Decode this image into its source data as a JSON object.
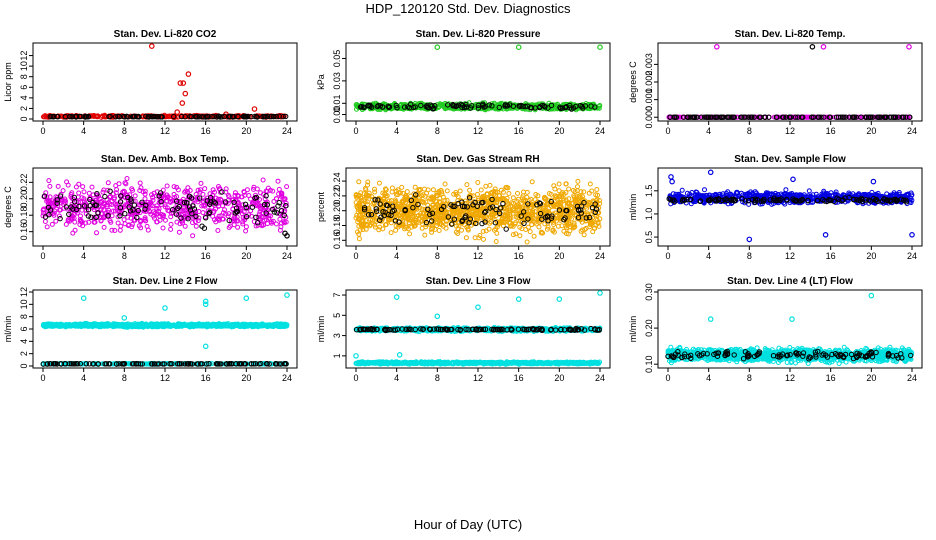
{
  "title": "HDP_120120  Std. Dev. Diagnostics",
  "xlabel": "Hour of Day (UTC)",
  "colors": {
    "black": "#000000",
    "red": "#e00000",
    "green": "#22cc22",
    "magenta": "#e000e0",
    "orange": "#f0a800",
    "blue": "#0000e0",
    "cyan": "#00e0e0"
  },
  "chart_data": [
    {
      "type": "scatter",
      "title": "Stan. Dev. Li-820 CO2",
      "ylabel": "Licor ppm",
      "xlim": [
        0,
        24
      ],
      "ylim": [
        0,
        14
      ],
      "yticks": [
        0,
        2,
        4,
        6,
        8,
        10,
        12
      ],
      "yticklabels": [
        "0",
        "2",
        "4",
        "6",
        "8",
        "10",
        "12"
      ],
      "xticks": [
        0,
        4,
        8,
        12,
        16,
        20,
        24
      ],
      "xticklabels": [
        "0",
        "4",
        "8",
        "12",
        "16",
        "20",
        "24"
      ],
      "series": [
        {
          "name": "main",
          "color": "red",
          "base": 0.5,
          "spread": 0.25,
          "density": 300,
          "outliers": [
            [
              10.7,
              13.8
            ],
            [
              13.5,
              6.8
            ],
            [
              13.8,
              6.8
            ],
            [
              14.0,
              4.8
            ],
            [
              14.3,
              8.5
            ],
            [
              13.7,
              3.0
            ],
            [
              13.2,
              1.3
            ],
            [
              20.8,
              1.9
            ],
            [
              18.0,
              0.9
            ],
            [
              0.7,
              0.6
            ]
          ]
        },
        {
          "name": "hourly",
          "color": "black",
          "base": 0.45,
          "spread": 0.1,
          "density": 120,
          "outliers": []
        }
      ]
    },
    {
      "type": "scatter",
      "title": "Stan. Dev. Li-820 Pressure",
      "ylabel": "kPa",
      "xlim": [
        0,
        24
      ],
      "ylim": [
        -0.004,
        0.062
      ],
      "yticks": [
        0,
        0.01,
        0.03,
        0.05
      ],
      "yticklabels": [
        "0.00",
        "0.01",
        "0.03",
        "0.05"
      ],
      "xticks": [
        0,
        4,
        8,
        12,
        16,
        20,
        24
      ],
      "xticklabels": [
        "0",
        "4",
        "8",
        "12",
        "16",
        "20",
        "24"
      ],
      "series": [
        {
          "name": "main",
          "color": "green",
          "base": 0.007,
          "spread": 0.004,
          "density": 700,
          "outliers": [
            [
              8,
              0.06
            ],
            [
              16,
              0.06
            ],
            [
              24,
              0.06
            ]
          ]
        },
        {
          "name": "hourly",
          "color": "black",
          "base": 0.007,
          "spread": 0.003,
          "density": 100,
          "outliers": []
        }
      ]
    },
    {
      "type": "scatter",
      "title": "Stan. Dev. Li-820 Temp.",
      "ylabel": "degrees C",
      "xlim": [
        0,
        24
      ],
      "ylim": [
        -0.0001,
        0.0041
      ],
      "yticks": [
        0,
        0.001,
        0.002,
        0.003
      ],
      "yticklabels": [
        "0.000",
        "0.001",
        "0.002",
        "0.003"
      ],
      "xticks": [
        0,
        4,
        8,
        12,
        16,
        20,
        24
      ],
      "xticklabels": [
        "0",
        "4",
        "8",
        "12",
        "16",
        "20",
        "24"
      ],
      "series": [
        {
          "name": "main",
          "color": "magenta",
          "base": 0.0,
          "spread": 0.0,
          "density": 200,
          "outliers": [
            [
              4.8,
              0.004
            ],
            [
              15.3,
              0.004
            ],
            [
              23.7,
              0.004
            ]
          ]
        },
        {
          "name": "hourly",
          "color": "black",
          "base": 0.0,
          "spread": 0.0,
          "density": 120,
          "outliers": [
            [
              14.2,
              0.004
            ]
          ]
        }
      ]
    },
    {
      "type": "scatter",
      "title": "Stan. Dev. Amb. Box Temp.",
      "ylabel": "degrees C",
      "xlim": [
        0,
        24
      ],
      "ylim": [
        0.145,
        0.235
      ],
      "yticks": [
        0.16,
        0.18,
        0.2,
        0.22
      ],
      "yticklabels": [
        "0.16",
        "0.18",
        "0.20",
        "0.22"
      ],
      "xticks": [
        0,
        4,
        8,
        12,
        16,
        20,
        24
      ],
      "xticklabels": [
        "0",
        "4",
        "8",
        "12",
        "16",
        "20",
        "24"
      ],
      "series": [
        {
          "name": "main",
          "color": "magenta",
          "base": 0.19,
          "spread": 0.04,
          "density": 700,
          "outliers": []
        },
        {
          "name": "hourly",
          "color": "black",
          "base": 0.19,
          "spread": 0.03,
          "density": 110,
          "outliers": [
            [
              23.8,
              0.158
            ],
            [
              24,
              0.155
            ]
          ]
        }
      ]
    },
    {
      "type": "scatter",
      "title": "Stan. Dev. Gas Stream RH",
      "ylabel": "percent",
      "xlim": [
        0,
        24
      ],
      "ylim": [
        0.155,
        0.255
      ],
      "yticks": [
        0.16,
        0.18,
        0.2,
        0.22,
        0.24
      ],
      "yticklabels": [
        "0.16",
        "0.18",
        "0.20",
        "0.22",
        "0.24"
      ],
      "xticks": [
        0,
        4,
        8,
        12,
        16,
        20,
        24
      ],
      "xticklabels": [
        "0",
        "4",
        "8",
        "12",
        "16",
        "20",
        "24"
      ],
      "series": [
        {
          "name": "main",
          "color": "orange",
          "base": 0.2,
          "spread": 0.045,
          "density": 1200,
          "outliers": []
        },
        {
          "name": "hourly",
          "color": "black",
          "base": 0.2,
          "spread": 0.03,
          "density": 110,
          "outliers": []
        }
      ]
    },
    {
      "type": "scatter",
      "title": "Stan. Dev. Sample Flow",
      "ylabel": "ml/min",
      "xlim": [
        0,
        24
      ],
      "ylim": [
        0.35,
        1.95
      ],
      "yticks": [
        0.5,
        1.0,
        1.5
      ],
      "yticklabels": [
        "0.5",
        "1.0",
        "1.5"
      ],
      "xticks": [
        0,
        4,
        8,
        12,
        16,
        20,
        24
      ],
      "xticklabels": [
        "0",
        "4",
        "8",
        "12",
        "16",
        "20",
        "24"
      ],
      "series": [
        {
          "name": "main",
          "color": "blue",
          "base": 1.35,
          "spread": 0.18,
          "density": 700,
          "outliers": [
            [
              0.3,
              1.8
            ],
            [
              0.4,
              1.7
            ],
            [
              4.2,
              1.9
            ],
            [
              8,
              0.45
            ],
            [
              15.5,
              0.55
            ],
            [
              24,
              0.55
            ],
            [
              12.3,
              1.75
            ],
            [
              20.2,
              1.7
            ]
          ]
        },
        {
          "name": "hourly",
          "color": "black",
          "base": 1.3,
          "spread": 0.06,
          "density": 120,
          "outliers": []
        }
      ]
    },
    {
      "type": "scatter",
      "title": "Stan. Dev. Line 2 Flow",
      "ylabel": "ml/min",
      "xlim": [
        0,
        24
      ],
      "ylim": [
        0,
        12
      ],
      "yticks": [
        0,
        2,
        4,
        6,
        8,
        10,
        12
      ],
      "yticklabels": [
        "0",
        "2",
        "4",
        "6",
        "8",
        "10",
        "12"
      ],
      "xticks": [
        0,
        4,
        8,
        12,
        16,
        20,
        24
      ],
      "xticklabels": [
        "0",
        "4",
        "8",
        "12",
        "16",
        "20",
        "24"
      ],
      "series": [
        {
          "name": "main",
          "color": "cyan",
          "base": 6.6,
          "spread": 0.35,
          "density": 900,
          "outliers": [
            [
              4,
              11
            ],
            [
              8,
              7.8
            ],
            [
              12,
              9.4
            ],
            [
              16,
              10.5
            ],
            [
              16,
              10
            ],
            [
              16,
              3.2
            ],
            [
              20,
              11
            ],
            [
              24,
              11.5
            ]
          ]
        },
        {
          "name": "low",
          "color": "cyan",
          "base": 0.35,
          "spread": 0.1,
          "density": 300,
          "outliers": []
        },
        {
          "name": "hourly",
          "color": "black",
          "base": 0.35,
          "spread": 0.05,
          "density": 120,
          "outliers": []
        }
      ]
    },
    {
      "type": "scatter",
      "title": "Stan. Dev. Line 3 Flow",
      "ylabel": "ml/min",
      "xlim": [
        0,
        24
      ],
      "ylim": [
        0,
        7.3
      ],
      "yticks": [
        1,
        3,
        5,
        7
      ],
      "yticklabels": [
        "1",
        "3",
        "5",
        "7"
      ],
      "xticks": [
        0,
        4,
        8,
        12,
        16,
        20,
        24
      ],
      "xticklabels": [
        "0",
        "4",
        "8",
        "12",
        "16",
        "20",
        "24"
      ],
      "series": [
        {
          "name": "main",
          "color": "cyan",
          "base": 3.6,
          "spread": 0.25,
          "density": 700,
          "outliers": [
            [
              0,
              1
            ],
            [
              4,
              6.8
            ],
            [
              4.3,
              1.1
            ],
            [
              8,
              4.9
            ],
            [
              12,
              5.8
            ],
            [
              16,
              6.6
            ],
            [
              20,
              6.6
            ],
            [
              24,
              7.2
            ]
          ]
        },
        {
          "name": "low",
          "color": "cyan",
          "base": 0.3,
          "spread": 0.15,
          "density": 700,
          "outliers": []
        },
        {
          "name": "hourly",
          "color": "black",
          "base": 3.6,
          "spread": 0.12,
          "density": 120,
          "outliers": []
        }
      ]
    },
    {
      "type": "scatter",
      "title": "Stan. Dev. Line 4 (LT) Flow",
      "ylabel": "ml/min",
      "xlim": [
        0,
        24
      ],
      "ylim": [
        0.095,
        0.3
      ],
      "yticks": [
        0.1,
        0.2,
        0.3
      ],
      "yticklabels": [
        "0.10",
        "0.20",
        "0.30"
      ],
      "xticks": [
        0,
        4,
        8,
        12,
        16,
        20,
        24
      ],
      "xticklabels": [
        "0",
        "4",
        "8",
        "12",
        "16",
        "20",
        "24"
      ],
      "series": [
        {
          "name": "main",
          "color": "cyan",
          "base": 0.125,
          "spread": 0.025,
          "density": 1200,
          "outliers": [
            [
              4.2,
              0.225
            ],
            [
              12.2,
              0.225
            ],
            [
              20,
              0.29
            ]
          ]
        },
        {
          "name": "hourly",
          "color": "black",
          "base": 0.125,
          "spread": 0.015,
          "density": 110,
          "outliers": []
        }
      ]
    }
  ]
}
